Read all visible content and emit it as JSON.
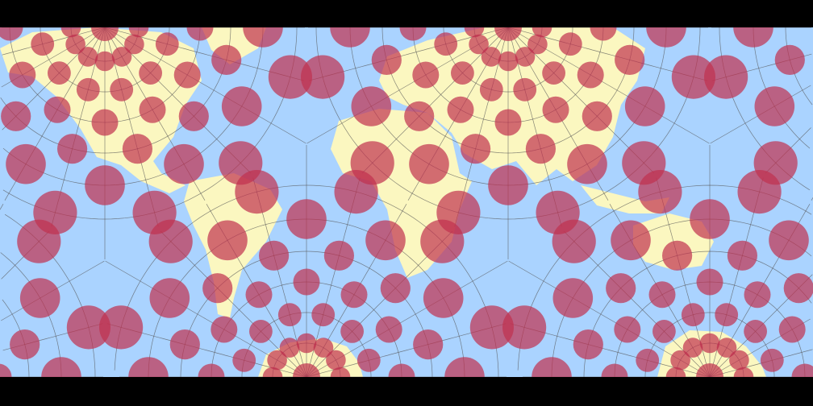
{
  "map": {
    "colors": {
      "background": "#000000",
      "ocean": "#aad3ff",
      "land": "#fbf7c0",
      "indicatrix": "#c0304f",
      "graticule": "#555555"
    },
    "features": [
      "graticule",
      "tissot-indicatrix",
      "land",
      "ocean"
    ]
  }
}
